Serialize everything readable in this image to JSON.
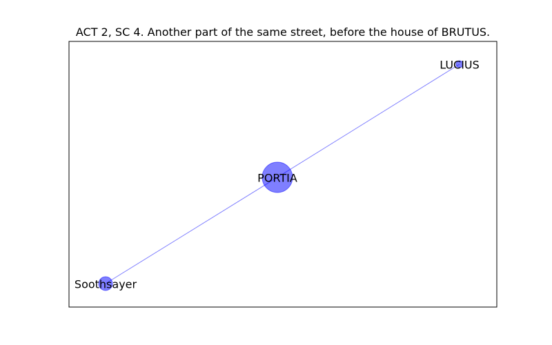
{
  "figure": {
    "title": "ACT 2, SC 4. Another part of the same street, before the house of BRUTUS."
  },
  "graph": {
    "type": "network",
    "color": "#0000ff",
    "nodes": [
      {
        "id": "PORTIA",
        "label": "PORTIA",
        "size": "large"
      },
      {
        "id": "LUCIUS",
        "label": "LUCIUS",
        "size": "small"
      },
      {
        "id": "Soothsayer",
        "label": "Soothsayer",
        "size": "medium"
      }
    ],
    "edges": [
      {
        "source": "PORTIA",
        "target": "LUCIUS"
      },
      {
        "source": "PORTIA",
        "target": "Soothsayer"
      }
    ]
  }
}
